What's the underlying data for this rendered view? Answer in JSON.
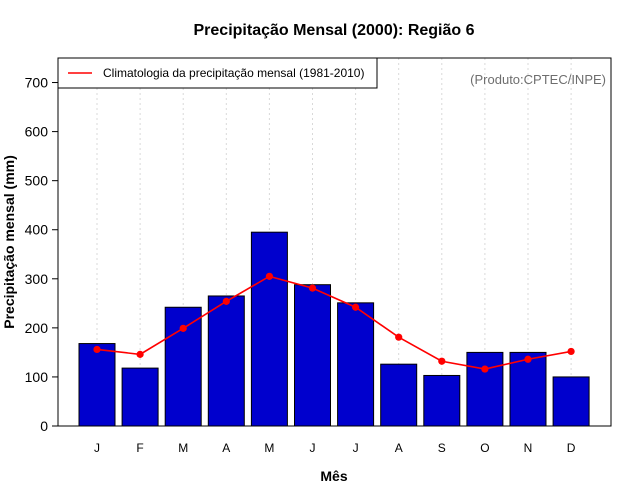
{
  "chart_data": {
    "type": "bar",
    "title": "Precipitação Mensal (2000): Região 6",
    "xlabel": "Mês",
    "ylabel": "Precipitação mensal (mm)",
    "categories": [
      "J",
      "F",
      "M",
      "A",
      "M",
      "J",
      "J",
      "A",
      "S",
      "O",
      "N",
      "D"
    ],
    "ylim": [
      0,
      750
    ],
    "yticks": [
      0,
      100,
      200,
      300,
      400,
      500,
      600,
      700
    ],
    "grid": "vertical dotted",
    "series": [
      {
        "name": "Precipitação mensal (2000)",
        "kind": "bar",
        "color": "#0000cd",
        "values": [
          168,
          118,
          242,
          265,
          395,
          288,
          251,
          126,
          103,
          150,
          150,
          100
        ]
      },
      {
        "name": "Climatologia da precipitação mensal (1981-2010)",
        "kind": "line",
        "color": "#ff0000",
        "values": [
          156,
          146,
          199,
          254,
          305,
          281,
          242,
          181,
          132,
          116,
          136,
          152
        ]
      }
    ],
    "legend": {
      "position": "top-left",
      "label": "Climatologia da precipitação mensal (1981-2010)"
    },
    "credit": "(Produto:CPTEC/INPE)"
  }
}
